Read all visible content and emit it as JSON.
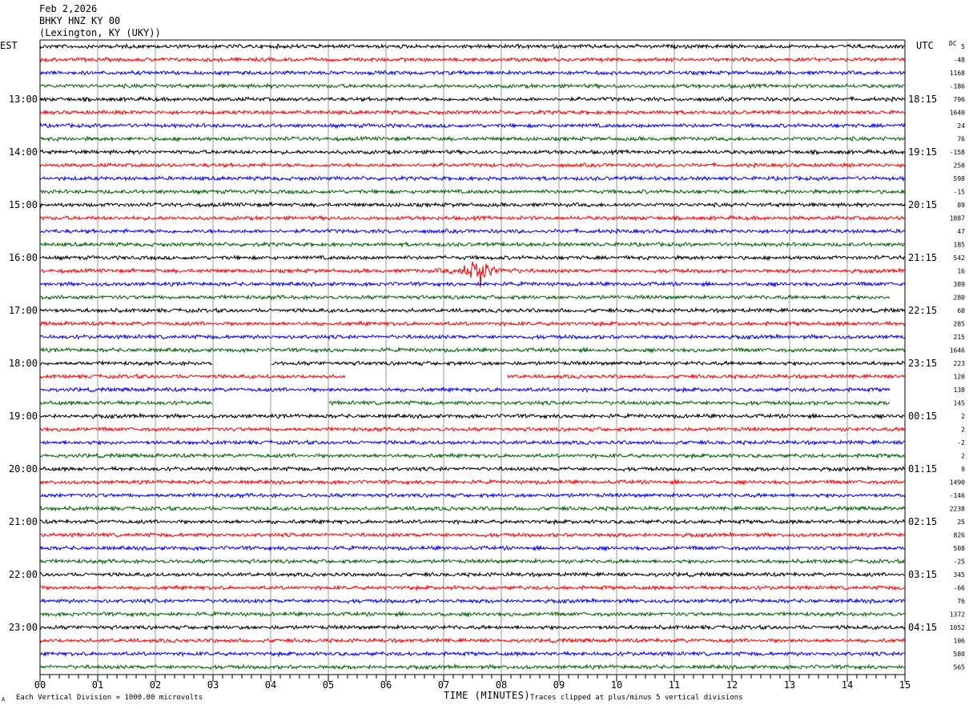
{
  "header": {
    "date": "Feb 2,2026",
    "station": "BHKY HNZ KY 00",
    "location": "(Lexington, KY (UKY))"
  },
  "left_zone_label": "EST",
  "right_zone_label": "UTC",
  "dc_label": "DC",
  "footer": {
    "scale_note": "Each Vertical Division = 1000.00 microvolts",
    "clip_note": "Traces clipped at plus/minus 5 vertical divisions",
    "corner_mark": "A"
  },
  "chart_data": {
    "type": "line",
    "title": "",
    "xlabel": "TIME (MINUTES)",
    "ylabel": "",
    "xlim": [
      0,
      15
    ],
    "x_ticks": [
      "00",
      "01",
      "02",
      "03",
      "04",
      "05",
      "06",
      "07",
      "08",
      "09",
      "10",
      "11",
      "12",
      "13",
      "14",
      "15"
    ],
    "trace_count": 48,
    "trace_colors": [
      "#000000",
      "#ff0000",
      "#0000ff",
      "#006400"
    ],
    "left_hour_labels": [
      "13:00",
      "14:00",
      "15:00",
      "16:00",
      "17:00",
      "18:00",
      "19:00",
      "20:00",
      "21:00",
      "22:00",
      "23:00"
    ],
    "right_hour_labels": [
      "18:15",
      "19:15",
      "20:15",
      "21:15",
      "22:15",
      "23:15",
      "00:15",
      "01:15",
      "02:15",
      "03:15",
      "04:15"
    ],
    "dc_offsets": [
      "5",
      "-48",
      "1168",
      "-186",
      "796",
      "1640",
      "24",
      "76",
      "-158",
      "250",
      "598",
      "-15",
      "89",
      "1887",
      "47",
      "185",
      "542",
      "16",
      "389",
      "280",
      "60",
      "285",
      "215",
      "1646",
      "223",
      "120",
      "138",
      "145",
      "2",
      "2",
      "-2",
      "2",
      "9",
      "1490",
      "-146",
      "2238",
      "25",
      "826",
      "508",
      "-25",
      "345",
      "-66",
      "76",
      "1372",
      "1052",
      "106",
      "580",
      "565"
    ],
    "events": [
      {
        "trace": 17,
        "minute": 7.6,
        "amplitude": "large",
        "note": "local event"
      }
    ],
    "data_gaps": [
      {
        "trace": 24,
        "from_minute": 3.0,
        "to_minute": 4.0
      },
      {
        "trace": 25,
        "from_minute": 5.3,
        "to_minute": 8.1
      },
      {
        "trace": 26,
        "from_minute": 14.75,
        "to_minute": 15.0
      },
      {
        "trace": 27,
        "from_minute": 3.0,
        "to_minute": 5.0
      },
      {
        "trace": 27,
        "from_minute": 14.75,
        "to_minute": 15.0
      },
      {
        "trace": 19,
        "from_minute": 14.75,
        "to_minute": 15.0
      }
    ]
  }
}
